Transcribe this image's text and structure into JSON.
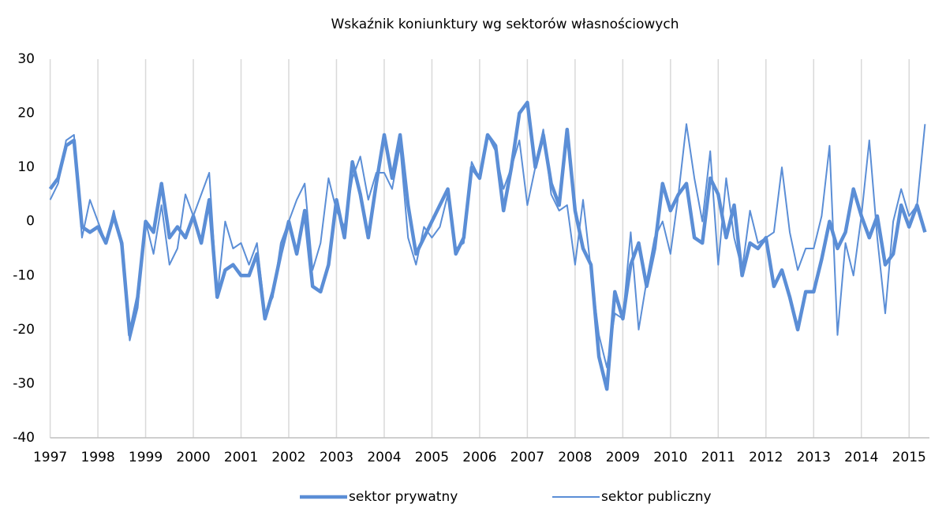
{
  "chart_data": {
    "type": "line",
    "title": "Wskaźnik koniunktury wg sektorów własnościowych",
    "categories": [
      "1997",
      null,
      null,
      null,
      null,
      null,
      "1998",
      null,
      null,
      null,
      null,
      null,
      "1999",
      null,
      null,
      null,
      null,
      null,
      "2000",
      null,
      null,
      null,
      null,
      null,
      "2001",
      null,
      null,
      null,
      null,
      null,
      "2002",
      null,
      null,
      null,
      null,
      null,
      "2003",
      null,
      null,
      null,
      null,
      null,
      "2004",
      null,
      null,
      null,
      null,
      null,
      "2005",
      null,
      null,
      null,
      null,
      null,
      "2006",
      null,
      null,
      null,
      null,
      null,
      "2007",
      null,
      null,
      null,
      null,
      null,
      "2008",
      null,
      null,
      null,
      null,
      null,
      "2009",
      null,
      null,
      null,
      null,
      null,
      "2010",
      null,
      null,
      null,
      null,
      null,
      "2011",
      null,
      null,
      null,
      null,
      null,
      "2012",
      null,
      null,
      null,
      null,
      null,
      "2013",
      null,
      null,
      null,
      null,
      null,
      "2014",
      null,
      null,
      null,
      null,
      null,
      "2015",
      null,
      null
    ],
    "series": [
      {
        "name": "sektor prywatny",
        "color": "#5b8ed6",
        "values": [
          6,
          8,
          14,
          15,
          -1,
          -2,
          -1,
          -4,
          1,
          -4,
          -21,
          -14,
          0,
          -2,
          7,
          -3,
          -1,
          -3,
          1,
          -4,
          4,
          -14,
          -9,
          -8,
          -10,
          -10,
          -6,
          -18,
          -13,
          -6,
          0,
          -6,
          2,
          -12,
          -13,
          -8,
          4,
          -3,
          11,
          5,
          -3,
          7,
          16,
          8,
          16,
          3,
          -6,
          -3,
          0,
          3,
          6,
          -6,
          -3,
          10,
          8,
          16,
          14,
          2,
          10,
          20,
          22,
          10,
          16,
          7,
          3,
          17,
          2,
          -5,
          -8,
          -25,
          -31,
          -13,
          -18,
          -8,
          -4,
          -12,
          -5,
          7,
          2,
          5,
          7,
          -3,
          -4,
          8,
          5,
          -3,
          3,
          -10,
          -4,
          -5,
          -3,
          -12,
          -9,
          -14,
          -20,
          -13,
          -13,
          -7,
          0,
          -5,
          -2,
          6,
          1,
          -3,
          1,
          -8,
          -6,
          3,
          -1,
          3,
          -2
        ]
      },
      {
        "name": "sektor publiczny",
        "color": "#5b8ed6",
        "values": [
          4,
          7,
          15,
          16,
          -3,
          4,
          0,
          -4,
          2,
          -5,
          -22,
          -16,
          0,
          -6,
          3,
          -8,
          -5,
          5,
          1,
          5,
          9,
          -14,
          0,
          -5,
          -4,
          -8,
          -4,
          -17,
          -14,
          -4,
          0,
          4,
          7,
          -9,
          -4,
          8,
          2,
          -1,
          8,
          12,
          4,
          9,
          9,
          6,
          14,
          -3,
          -8,
          -1,
          -3,
          -1,
          5,
          -5,
          -4,
          11,
          8,
          16,
          13,
          6,
          10,
          15,
          3,
          10,
          17,
          5,
          2,
          3,
          -8,
          4,
          -9,
          -21,
          -27,
          -17,
          -18,
          -2,
          -20,
          -11,
          -3,
          0,
          -6,
          5,
          18,
          8,
          0,
          13,
          -8,
          8,
          -3,
          -9,
          2,
          -4,
          -3,
          -2,
          10,
          -2,
          -9,
          -5,
          -5,
          1,
          14,
          -21,
          -4,
          -10,
          1,
          15,
          -3,
          -17,
          0,
          6,
          1,
          3,
          18
        ]
      }
    ],
    "ylim": [
      -40,
      30
    ],
    "yticks": [
      -40,
      -30,
      -20,
      -10,
      0,
      10,
      20,
      30
    ],
    "grid": true,
    "legend": "bottom"
  }
}
